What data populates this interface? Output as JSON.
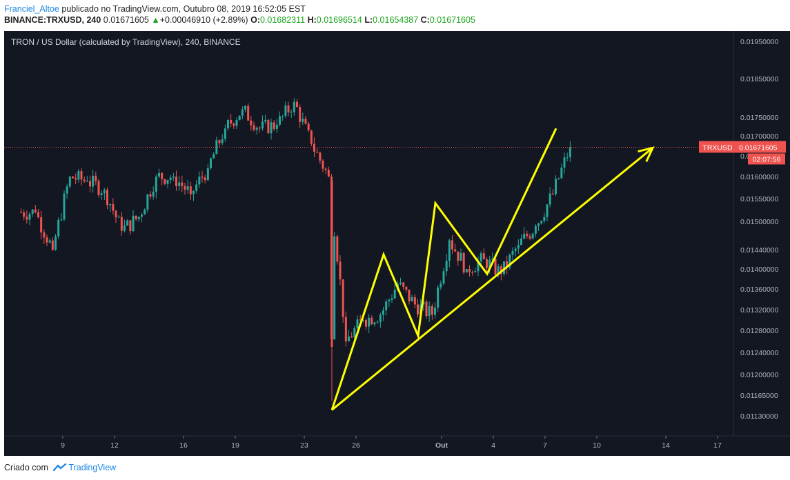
{
  "header": {
    "author": "Franciel_Altoe",
    "published_text": "publicado no TradingView.com, Outubro 08, 2019 16:52:05 EST",
    "symbol": "BINANCE:TRXUSD, 240",
    "last": "0.01671605",
    "change": "+0.00046910 (+2.89%)",
    "o_label": "O:",
    "o_value": "0.01682311",
    "h_label": "H:",
    "h_value": "0.01696514",
    "l_label": "L:",
    "l_value": "0.01654387",
    "c_label": "C:",
    "c_value": "0.01671605"
  },
  "footer": {
    "created_with": "Criado com",
    "brand": "TradingView",
    "logo_icon": "tradingview-logo-icon"
  },
  "colors": {
    "background": "#131722",
    "up": "#26a69a",
    "down": "#ef5350",
    "drawing": "#ffff00",
    "price_line": "#ef5350",
    "axis_text": "#b2b5be"
  },
  "chart_data": {
    "type": "candlestick",
    "title": "TRON / US Dollar (calculated by TradingView), 240, BINANCE",
    "x_tick_labels": [
      "9",
      "12",
      "16",
      "19",
      "23",
      "26",
      "Out",
      "4",
      "7",
      "10",
      "14",
      "17"
    ],
    "y_tick_labels": [
      "0.01950000",
      "0.01850000",
      "0.01750000",
      "0.01700000",
      "0.01650000",
      "0.01600000",
      "0.01550000",
      "0.01500000",
      "0.01440000",
      "0.01400000",
      "0.01360000",
      "0.01320000",
      "0.01280000",
      "0.01240000",
      "0.01200000",
      "0.01165000",
      "0.01130000"
    ],
    "ylim": [
      0.0111,
      0.0199
    ],
    "current_price": {
      "symbol": "TRXUSD",
      "value": 0.01671605,
      "value_label": "0.01671605",
      "countdown": "02:07:56"
    },
    "series": [
      {
        "name": "TRXUSD",
        "points": [
          {
            "date": "2019-09-07",
            "close": 0.0152
          },
          {
            "date": "2019-09-08",
            "close": 0.0144
          },
          {
            "date": "2019-09-09",
            "close": 0.016
          },
          {
            "date": "2019-09-10",
            "close": 0.0159
          },
          {
            "date": "2019-09-11",
            "close": 0.0157
          },
          {
            "date": "2019-09-12",
            "close": 0.0148
          },
          {
            "date": "2019-09-13",
            "close": 0.0151
          },
          {
            "date": "2019-09-14",
            "close": 0.016
          },
          {
            "date": "2019-09-15",
            "close": 0.016
          },
          {
            "date": "2019-09-16",
            "close": 0.0156
          },
          {
            "date": "2019-09-17",
            "close": 0.0162
          },
          {
            "date": "2019-09-18",
            "close": 0.0172
          },
          {
            "date": "2019-09-19",
            "close": 0.0177
          },
          {
            "date": "2019-09-20",
            "close": 0.0172
          },
          {
            "date": "2019-09-21",
            "close": 0.0173
          },
          {
            "date": "2019-09-22",
            "close": 0.0179
          },
          {
            "date": "2019-09-23",
            "close": 0.0168
          },
          {
            "date": "2019-09-24",
            "close": 0.016
          },
          {
            "date": "2019-09-25",
            "close": 0.0126
          },
          {
            "date": "2019-09-26",
            "close": 0.013
          },
          {
            "date": "2019-09-27",
            "close": 0.0131
          },
          {
            "date": "2019-09-28",
            "close": 0.0137
          },
          {
            "date": "2019-09-29",
            "close": 0.0133
          },
          {
            "date": "2019-09-30",
            "close": 0.0131
          },
          {
            "date": "2019-10-01",
            "close": 0.0146
          },
          {
            "date": "2019-10-02",
            "close": 0.014
          },
          {
            "date": "2019-10-03",
            "close": 0.0142
          },
          {
            "date": "2019-10-04",
            "close": 0.0139
          },
          {
            "date": "2019-10-05",
            "close": 0.0145
          },
          {
            "date": "2019-10-06",
            "close": 0.0149
          },
          {
            "date": "2019-10-07",
            "close": 0.0156
          },
          {
            "date": "2019-10-08",
            "close": 0.01671605
          }
        ]
      }
    ],
    "drawings": {
      "zigzag": [
        {
          "date": "2019-09-25",
          "price": 0.0114
        },
        {
          "date": "2019-09-28",
          "price": 0.0143
        },
        {
          "date": "2019-09-30",
          "price": 0.0127
        },
        {
          "date": "2019-10-01",
          "price": 0.0154
        },
        {
          "date": "2019-10-04",
          "price": 0.0139
        },
        {
          "date": "2019-10-08",
          "price": 0.0172
        }
      ],
      "trendline_arrow": {
        "from": {
          "date": "2019-09-25",
          "price": 0.0114
        },
        "to": {
          "date": "2019-10-14",
          "price": 0.0167
        }
      }
    }
  }
}
